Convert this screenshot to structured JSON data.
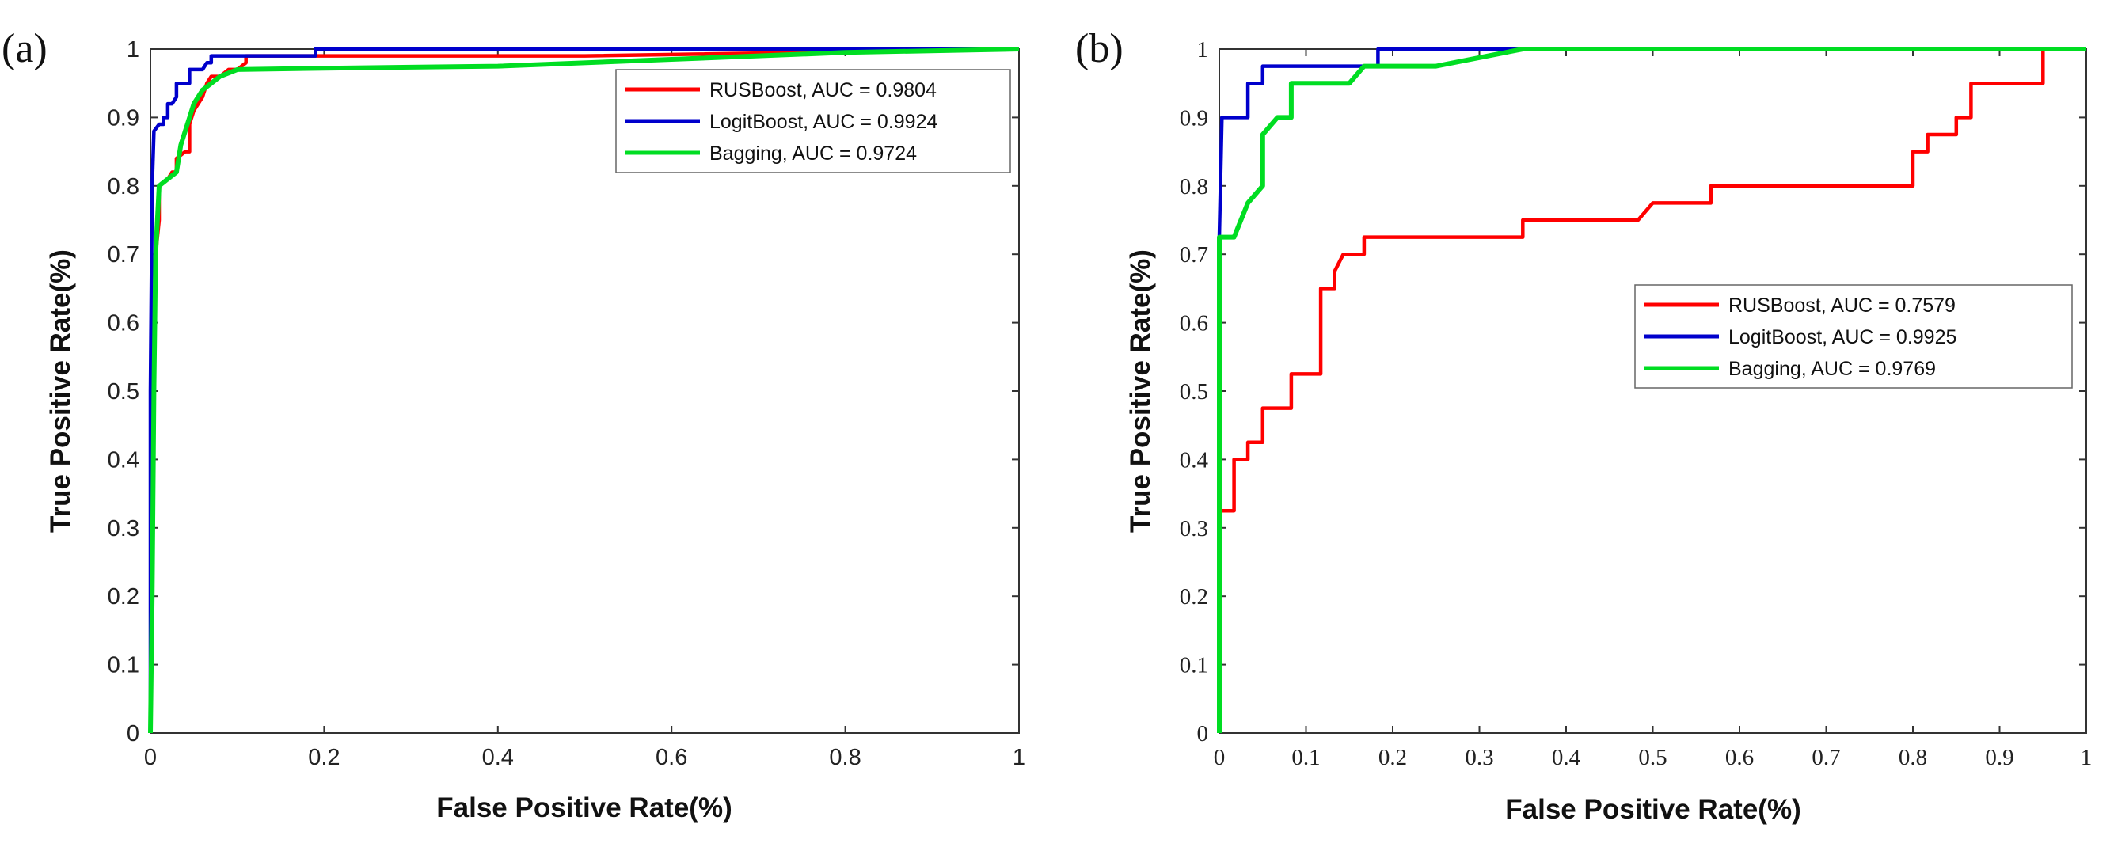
{
  "chart_data": [
    {
      "panel": "(a)",
      "type": "line",
      "title": "",
      "xlabel": "False Positive Rate(%)",
      "ylabel": "True Positive Rate(%)",
      "xlim": [
        0,
        1
      ],
      "ylim": [
        0,
        1
      ],
      "xticks": [
        "0",
        "0.2",
        "0.4",
        "0.6",
        "0.8",
        "1"
      ],
      "yticks": [
        "0",
        "0.1",
        "0.2",
        "0.3",
        "0.4",
        "0.5",
        "0.6",
        "0.7",
        "0.8",
        "0.9",
        "1"
      ],
      "legend_position": "top-right",
      "series": [
        {
          "name": "RUSBoost, AUC = 0.9804",
          "color": "#ff0000",
          "points": [
            [
              0,
              0
            ],
            [
              0.004,
              0.5
            ],
            [
              0.006,
              0.7
            ],
            [
              0.01,
              0.75
            ],
            [
              0.01,
              0.8
            ],
            [
              0.02,
              0.81
            ],
            [
              0.025,
              0.82
            ],
            [
              0.03,
              0.82
            ],
            [
              0.03,
              0.84
            ],
            [
              0.04,
              0.85
            ],
            [
              0.045,
              0.85
            ],
            [
              0.045,
              0.89
            ],
            [
              0.05,
              0.91
            ],
            [
              0.06,
              0.93
            ],
            [
              0.065,
              0.95
            ],
            [
              0.07,
              0.96
            ],
            [
              0.08,
              0.96
            ],
            [
              0.09,
              0.97
            ],
            [
              0.1,
              0.97
            ],
            [
              0.11,
              0.98
            ],
            [
              0.11,
              0.99
            ],
            [
              0.2,
              0.99
            ],
            [
              0.5,
              0.99
            ],
            [
              1,
              1
            ]
          ]
        },
        {
          "name": "LogitBoost, AUC = 0.9924",
          "color": "#0000cc",
          "points": [
            [
              0,
              0
            ],
            [
              0,
              0.5
            ],
            [
              0.002,
              0.8
            ],
            [
              0.004,
              0.88
            ],
            [
              0.01,
              0.89
            ],
            [
              0.015,
              0.89
            ],
            [
              0.015,
              0.9
            ],
            [
              0.02,
              0.9
            ],
            [
              0.02,
              0.92
            ],
            [
              0.025,
              0.92
            ],
            [
              0.03,
              0.93
            ],
            [
              0.03,
              0.95
            ],
            [
              0.045,
              0.95
            ],
            [
              0.045,
              0.97
            ],
            [
              0.06,
              0.97
            ],
            [
              0.065,
              0.98
            ],
            [
              0.07,
              0.98
            ],
            [
              0.07,
              0.99
            ],
            [
              0.19,
              0.99
            ],
            [
              0.19,
              1
            ],
            [
              1,
              1
            ]
          ]
        },
        {
          "name": "Bagging, AUC = 0.9724",
          "color": "#00dd22",
          "points": [
            [
              0,
              0
            ],
            [
              0.002,
              0.2
            ],
            [
              0.004,
              0.5
            ],
            [
              0.006,
              0.7
            ],
            [
              0.01,
              0.8
            ],
            [
              0.02,
              0.81
            ],
            [
              0.03,
              0.82
            ],
            [
              0.035,
              0.86
            ],
            [
              0.045,
              0.9
            ],
            [
              0.05,
              0.92
            ],
            [
              0.06,
              0.94
            ],
            [
              0.07,
              0.95
            ],
            [
              0.08,
              0.96
            ],
            [
              0.1,
              0.97
            ],
            [
              0.2,
              0.972
            ],
            [
              0.4,
              0.975
            ],
            [
              0.6,
              0.985
            ],
            [
              0.8,
              0.995
            ],
            [
              1,
              1
            ]
          ]
        }
      ]
    },
    {
      "panel": "(b)",
      "type": "line",
      "title": "",
      "xlabel": "False Positive Rate(%)",
      "ylabel": "True Positive Rate(%)",
      "xlim": [
        0,
        1
      ],
      "ylim": [
        0,
        1
      ],
      "xticks": [
        "0",
        "0.1",
        "0.2",
        "0.3",
        "0.4",
        "0.5",
        "0.6",
        "0.7",
        "0.8",
        "0.9",
        "1"
      ],
      "yticks": [
        "0",
        "0.1",
        "0.2",
        "0.3",
        "0.4",
        "0.5",
        "0.6",
        "0.7",
        "0.8",
        "0.9",
        "1"
      ],
      "legend_position": "center-right",
      "series": [
        {
          "name": "RUSBoost, AUC = 0.7579",
          "color": "#ff0000",
          "points": [
            [
              0,
              0
            ],
            [
              0,
              0.325
            ],
            [
              0.017,
              0.325
            ],
            [
              0.017,
              0.4
            ],
            [
              0.033,
              0.4
            ],
            [
              0.033,
              0.425
            ],
            [
              0.05,
              0.425
            ],
            [
              0.05,
              0.475
            ],
            [
              0.083,
              0.475
            ],
            [
              0.083,
              0.525
            ],
            [
              0.117,
              0.525
            ],
            [
              0.117,
              0.65
            ],
            [
              0.133,
              0.65
            ],
            [
              0.133,
              0.675
            ],
            [
              0.143,
              0.7
            ],
            [
              0.167,
              0.7
            ],
            [
              0.167,
              0.725
            ],
            [
              0.35,
              0.725
            ],
            [
              0.35,
              0.75
            ],
            [
              0.483,
              0.75
            ],
            [
              0.5,
              0.775
            ],
            [
              0.567,
              0.775
            ],
            [
              0.567,
              0.8
            ],
            [
              0.8,
              0.8
            ],
            [
              0.8,
              0.85
            ],
            [
              0.817,
              0.85
            ],
            [
              0.817,
              0.875
            ],
            [
              0.85,
              0.875
            ],
            [
              0.85,
              0.9
            ],
            [
              0.867,
              0.9
            ],
            [
              0.867,
              0.95
            ],
            [
              0.95,
              0.95
            ],
            [
              0.95,
              1
            ],
            [
              1,
              1
            ]
          ]
        },
        {
          "name": "LogitBoost, AUC = 0.9925",
          "color": "#0000cc",
          "points": [
            [
              0,
              0
            ],
            [
              0,
              0.725
            ],
            [
              0.003,
              0.9
            ],
            [
              0.033,
              0.9
            ],
            [
              0.033,
              0.95
            ],
            [
              0.05,
              0.95
            ],
            [
              0.05,
              0.975
            ],
            [
              0.183,
              0.975
            ],
            [
              0.183,
              1
            ],
            [
              1,
              1
            ]
          ]
        },
        {
          "name": "Bagging, AUC = 0.9769",
          "color": "#00dd22",
          "points": [
            [
              0,
              0
            ],
            [
              0,
              0.725
            ],
            [
              0.017,
              0.725
            ],
            [
              0.033,
              0.775
            ],
            [
              0.05,
              0.8
            ],
            [
              0.05,
              0.875
            ],
            [
              0.067,
              0.9
            ],
            [
              0.083,
              0.9
            ],
            [
              0.083,
              0.95
            ],
            [
              0.15,
              0.95
            ],
            [
              0.167,
              0.975
            ],
            [
              0.25,
              0.975
            ],
            [
              0.35,
              1
            ],
            [
              1,
              1
            ]
          ]
        }
      ]
    }
  ]
}
